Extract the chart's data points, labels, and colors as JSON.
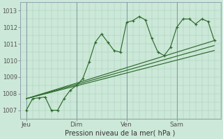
{
  "xlabel": "Pression niveau de la mer( hPa )",
  "bg_color": "#cce8d8",
  "grid_color": "#aaccb8",
  "line_color": "#2d6b2d",
  "xtick_labels": [
    "Jeu",
    "Dim",
    "Ven",
    "Sam"
  ],
  "xtick_positions": [
    0,
    8,
    16,
    24
  ],
  "ylim": [
    1006.5,
    1013.3
  ],
  "xlim": [
    -0.5,
    31
  ],
  "line1_x": [
    0,
    1,
    2,
    3,
    4,
    5,
    6,
    7,
    8,
    9,
    10,
    11,
    12,
    13,
    14,
    15,
    16,
    17,
    18,
    19,
    20,
    21,
    22,
    23,
    24,
    25,
    26,
    27,
    28,
    29,
    30
  ],
  "line1_y": [
    1007.0,
    1007.7,
    1007.75,
    1007.8,
    1007.0,
    1007.0,
    1007.7,
    1008.2,
    1008.5,
    1008.9,
    1009.9,
    1011.1,
    1011.6,
    1011.1,
    1010.6,
    1010.5,
    1012.3,
    1012.4,
    1012.65,
    1012.45,
    1011.35,
    1010.5,
    1010.3,
    1010.8,
    1012.0,
    1012.5,
    1012.5,
    1012.2,
    1012.5,
    1012.35,
    1011.2
  ],
  "straight_lines": [
    {
      "x0": 0,
      "y0": 1007.7,
      "x1": 30,
      "y1": 1011.2
    },
    {
      "x0": 0,
      "y0": 1007.7,
      "x1": 30,
      "y1": 1010.9
    },
    {
      "x0": 0,
      "y0": 1007.7,
      "x1": 30,
      "y1": 1010.6
    }
  ],
  "vline_positions": [
    0,
    8,
    16,
    24
  ]
}
